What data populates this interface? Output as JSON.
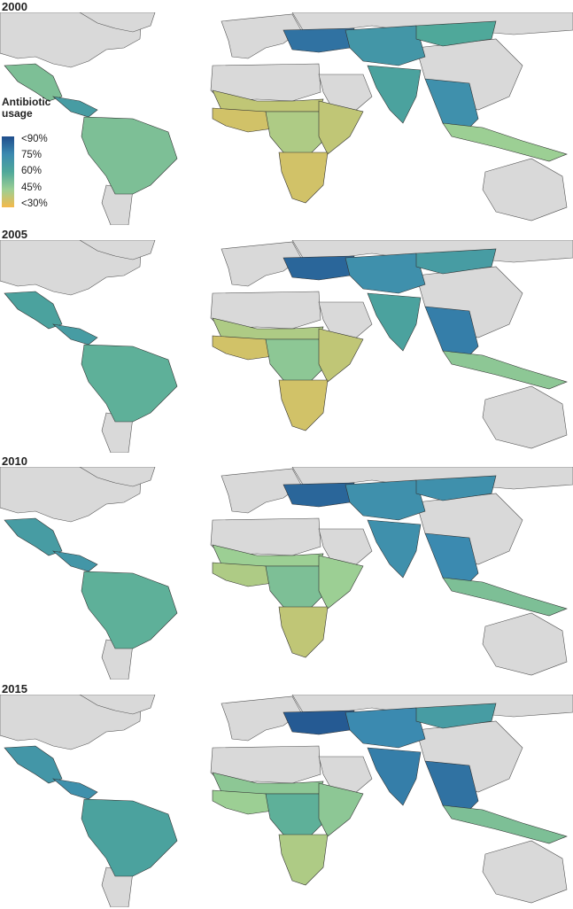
{
  "panels": [
    {
      "year": "2000"
    },
    {
      "year": "2005"
    },
    {
      "year": "2010"
    },
    {
      "year": "2015"
    }
  ],
  "legend": {
    "title_line1": "Antibiotic",
    "title_line2": "usage",
    "labels": [
      "<90%",
      "75%",
      "60%",
      "45%",
      "<30%"
    ]
  },
  "colors": {
    "high": "#1f4e8c",
    "mid_high": "#3b8ab0",
    "mid": "#4fa89a",
    "mid_low": "#9ccf94",
    "low": "#f5b94a",
    "no_data": "#d9d9d9",
    "background": "#ffffff"
  },
  "region_levels": {
    "2000": {
      "mexico": 0.35,
      "central_america": 0.6,
      "south_america": 0.35,
      "north_africa": 0.15,
      "west_africa": 0.1,
      "central_africa": 0.2,
      "east_africa": 0.15,
      "southern_africa": 0.1,
      "europe_east": 0.85,
      "central_asia": 0.65,
      "south_asia": 0.55,
      "southeast_asia": 0.7,
      "indonesia": 0.25,
      "mongolia": 0.5
    },
    "2005": {
      "mexico": 0.55,
      "central_america": 0.6,
      "south_america": 0.45,
      "north_africa": 0.2,
      "west_africa": 0.1,
      "central_africa": 0.3,
      "east_africa": 0.15,
      "southern_africa": 0.1,
      "europe_east": 0.9,
      "central_asia": 0.7,
      "south_asia": 0.55,
      "southeast_asia": 0.8,
      "indonesia": 0.3,
      "mongolia": 0.6
    },
    "2010": {
      "mexico": 0.6,
      "central_america": 0.65,
      "south_america": 0.45,
      "north_africa": 0.25,
      "west_africa": 0.2,
      "central_africa": 0.35,
      "east_africa": 0.25,
      "southern_africa": 0.15,
      "europe_east": 0.9,
      "central_asia": 0.7,
      "south_asia": 0.7,
      "southeast_asia": 0.75,
      "indonesia": 0.35,
      "mongolia": 0.7
    },
    "2015": {
      "mexico": 0.65,
      "central_america": 0.7,
      "south_america": 0.55,
      "north_africa": 0.3,
      "west_africa": 0.25,
      "central_africa": 0.45,
      "east_africa": 0.3,
      "southern_africa": 0.2,
      "europe_east": 0.95,
      "central_asia": 0.75,
      "south_asia": 0.8,
      "southeast_asia": 0.85,
      "indonesia": 0.35,
      "mongolia": 0.6
    }
  }
}
